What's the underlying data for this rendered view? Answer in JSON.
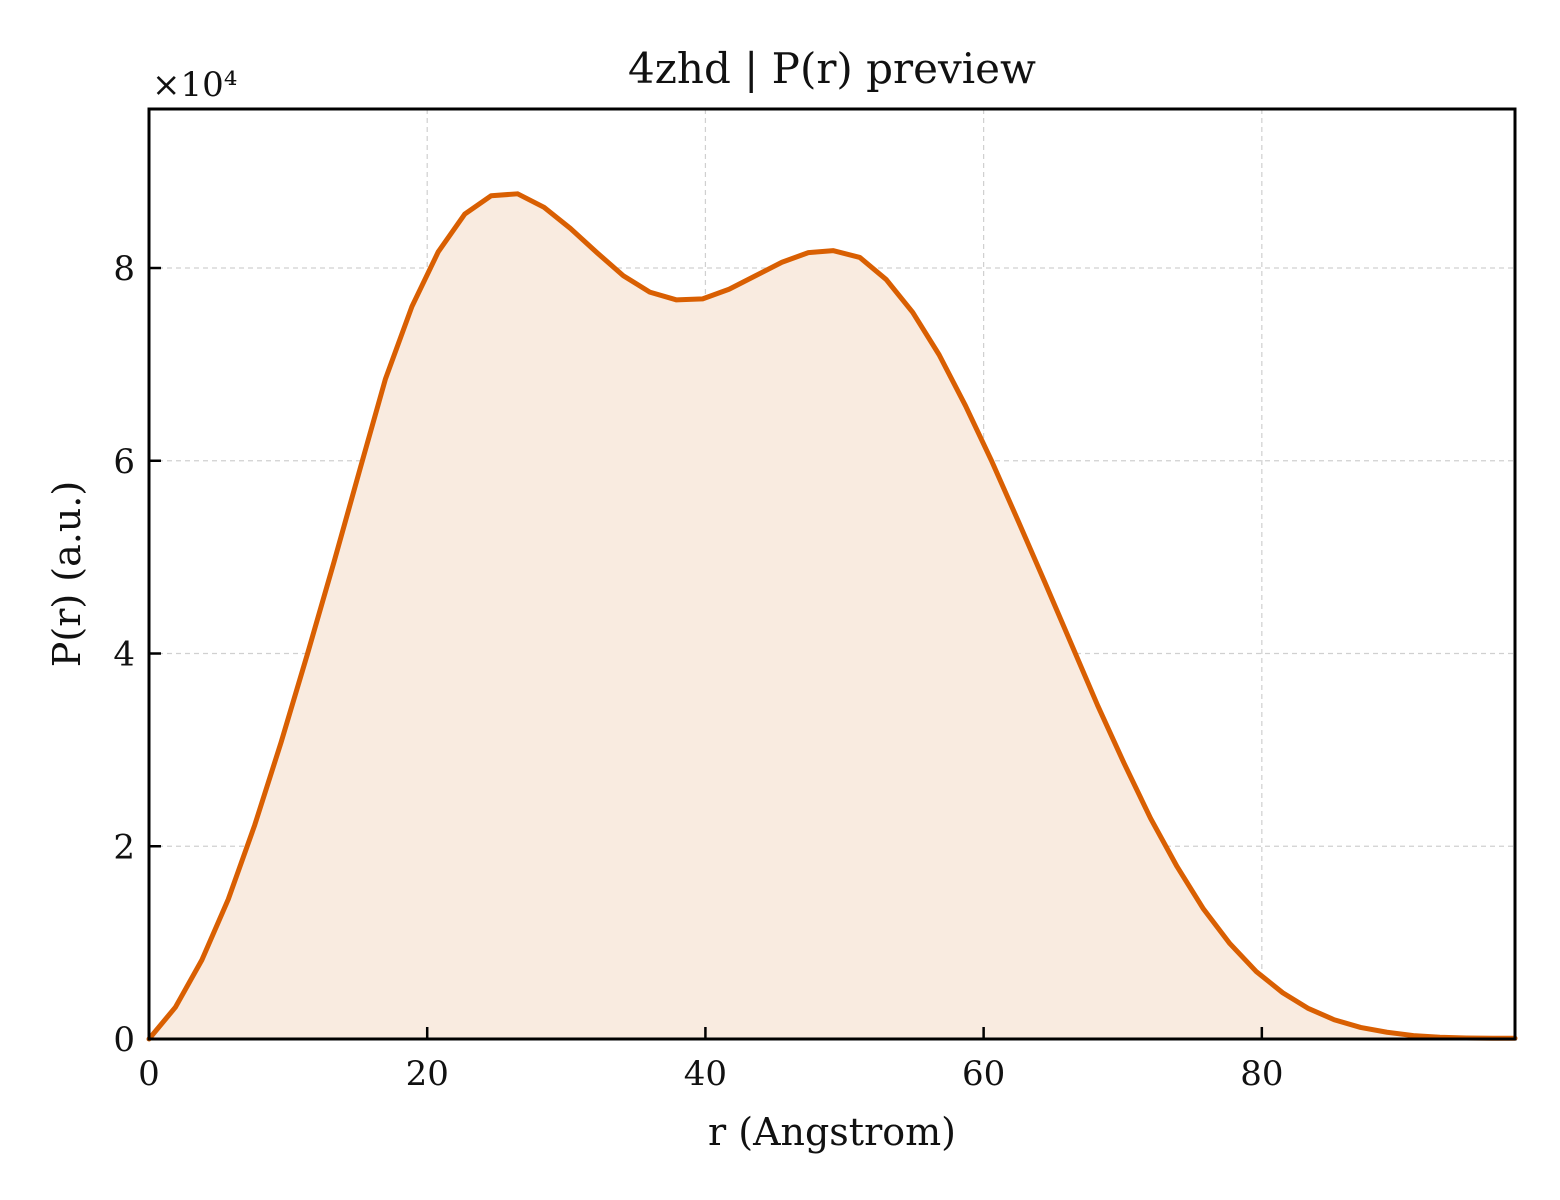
{
  "chart_data": {
    "type": "area",
    "title": "4zhd | P(r) preview",
    "xlabel": "r (Angstrom)",
    "ylabel": "P(r) (a.u.)",
    "y_multiplier": "×10⁴",
    "xlim": [
      0,
      98.2
    ],
    "ylim": [
      0,
      96500
    ],
    "grid": true,
    "legend": "none",
    "x_ticks": [
      0,
      20,
      40,
      60,
      80
    ],
    "y_ticks": [
      0,
      2,
      4,
      6,
      8
    ],
    "y_tick_values": [
      0,
      20000,
      40000,
      60000,
      80000
    ],
    "line_color": "#d95f02",
    "fill_color": "#f9ebe0",
    "series": [
      {
        "x": [
          0,
          1.9,
          3.8,
          5.7,
          7.6,
          9.5,
          11.4,
          13.3,
          15.2,
          17.0,
          18.9,
          20.8,
          22.7,
          24.6,
          26.5,
          28.4,
          30.3,
          32.2,
          34.1,
          36.0,
          37.9,
          39.8,
          41.7,
          43.6,
          45.5,
          47.4,
          49.2,
          51.1,
          53.0,
          54.9,
          56.8,
          58.7,
          60.6,
          62.5,
          64.4,
          66.3,
          68.2,
          70.1,
          72.0,
          73.9,
          75.8,
          77.7,
          79.6,
          81.5,
          83.3,
          85.2,
          87.1,
          89.0,
          90.9,
          92.8,
          94.7,
          96.6,
          98.2
        ],
        "y": [
          0,
          3300,
          8200,
          14500,
          22200,
          30800,
          40000,
          49500,
          59300,
          68500,
          76000,
          81700,
          85600,
          87500,
          87700,
          86300,
          84100,
          81600,
          79200,
          77500,
          76700,
          76800,
          77800,
          79200,
          80600,
          81600,
          81800,
          81100,
          78800,
          75400,
          71000,
          65700,
          59900,
          53700,
          47400,
          41000,
          34600,
          28600,
          22900,
          17900,
          13500,
          9900,
          7000,
          4800,
          3200,
          2000,
          1200,
          700,
          350,
          180,
          100,
          80,
          80
        ]
      }
    ]
  }
}
